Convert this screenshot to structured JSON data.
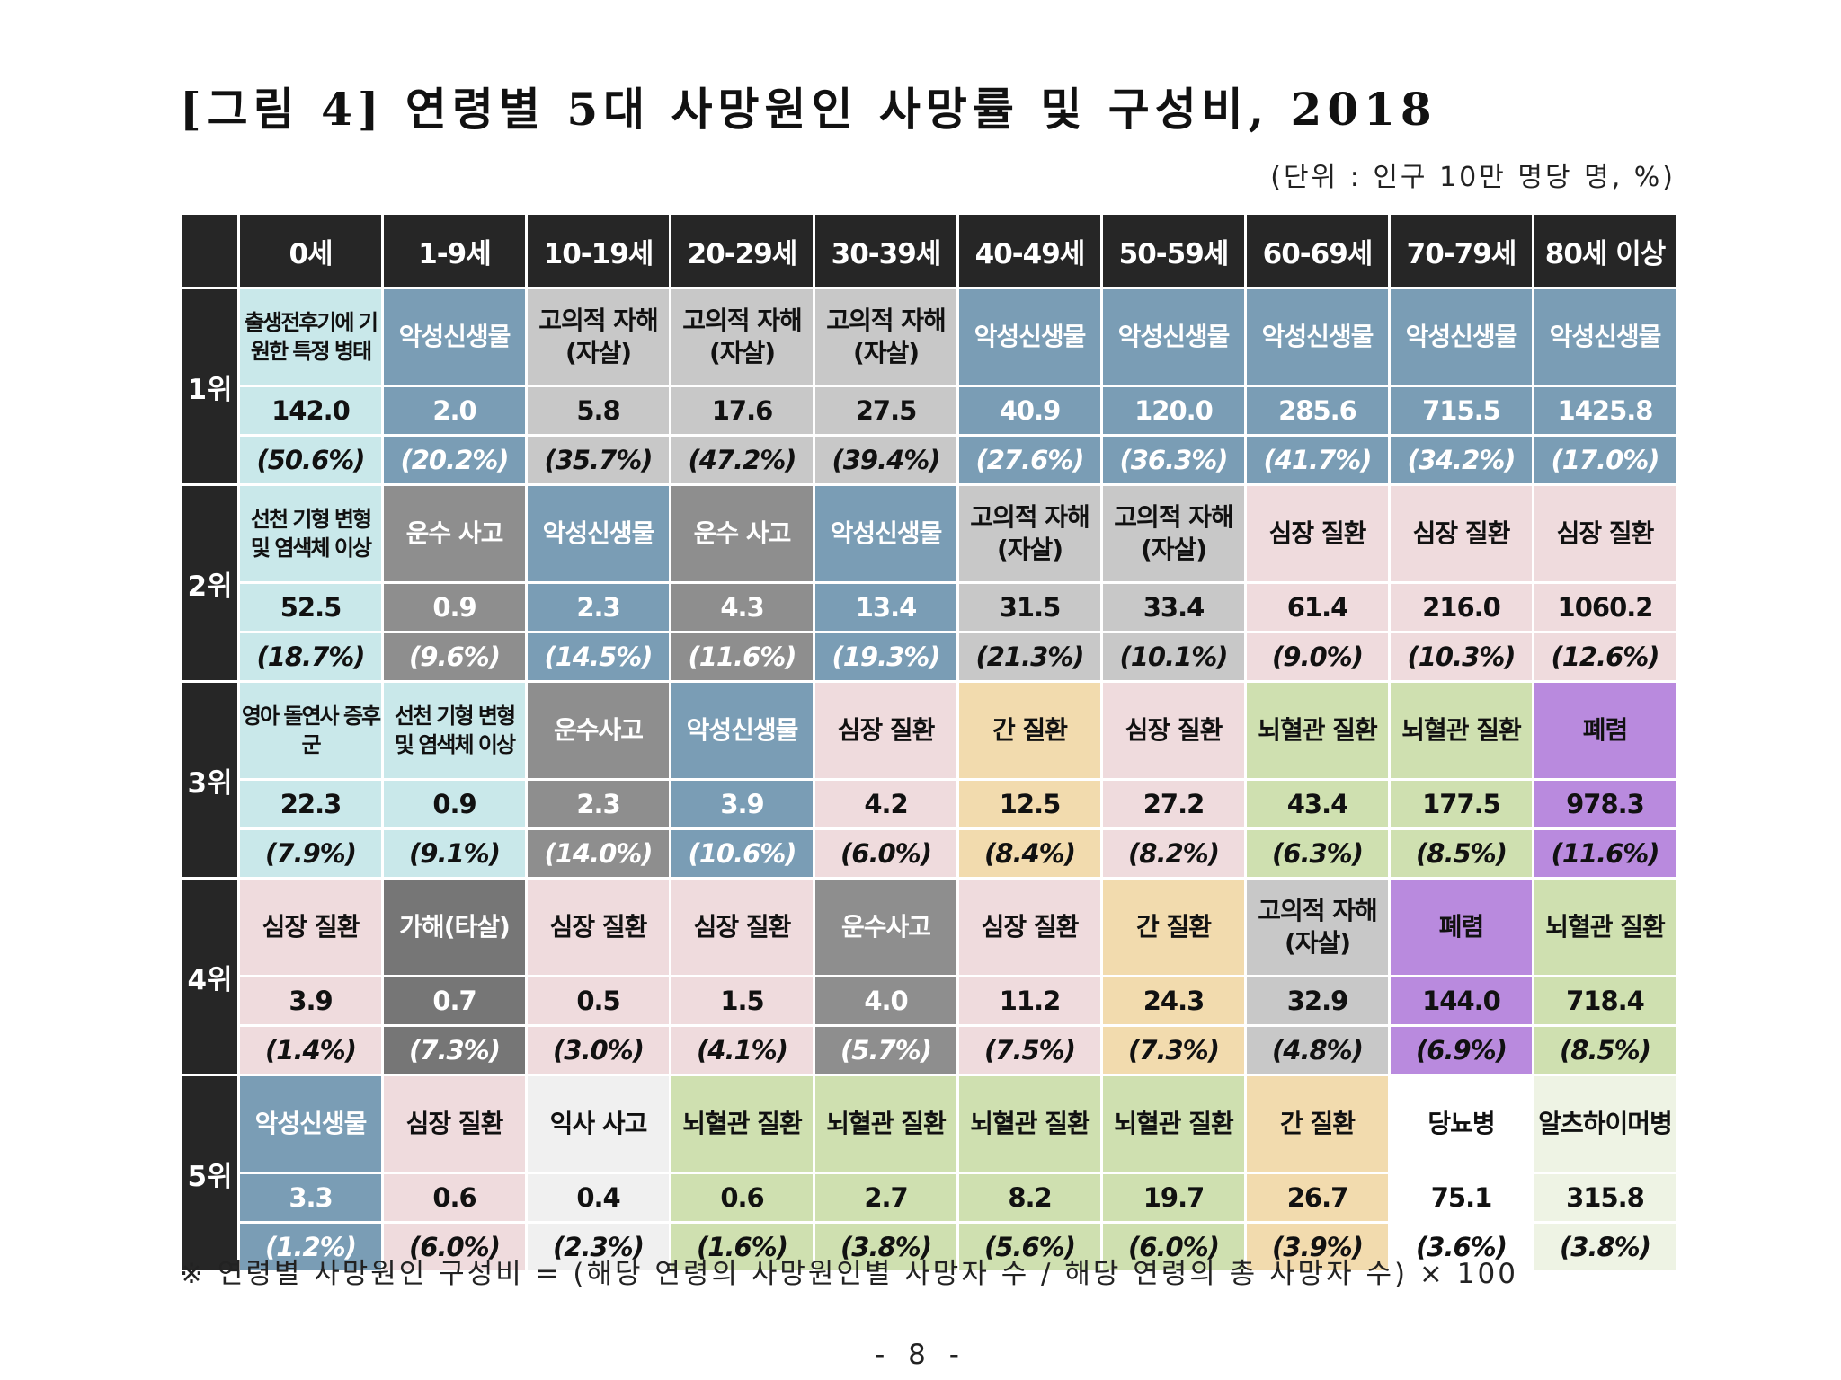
{
  "title": "[그림 4] 연령별 5대 사망원인 사망률 및 구성비, 2018",
  "unit": "(단위 : 인구 10만 명당 명, %)",
  "colors": {
    "header_bg": "#262626",
    "malignant_neoplasm": "#7a9db5",
    "intentional_self_harm": "#c8c8c8",
    "transport_accident": "#8e8e8e",
    "assault": "#767676",
    "heart_disease": "#efdbdd",
    "liver_disease": "#f2dbae",
    "cerebrovascular": "#cfe0b0",
    "pneumonia": "#b98ade",
    "perinatal_congenital": "#c9e8ea",
    "drowning": "#f0f0f0",
    "diabetes": "#ffffff",
    "alzheimer": "#eef3e4"
  },
  "table": {
    "corner": "",
    "age_groups": [
      "0세",
      "1-9세",
      "10-19세",
      "20-29세",
      "30-39세",
      "40-49세",
      "50-59세",
      "60-69세",
      "70-79세",
      "80세 이상"
    ],
    "rows": [
      {
        "rank": "1위",
        "cells": [
          {
            "cause": "출생전후기에 기원한 특정 병태",
            "rate": "142.0",
            "pct": "(50.6%)",
            "color": "#c9e8ea",
            "text": "dark",
            "small": true
          },
          {
            "cause": "악성신생물",
            "rate": "2.0",
            "pct": "(20.2%)",
            "color": "#7a9db5",
            "text": "light"
          },
          {
            "cause": "고의적 자해(자살)",
            "rate": "5.8",
            "pct": "(35.7%)",
            "color": "#c8c8c8",
            "text": "dark"
          },
          {
            "cause": "고의적 자해(자살)",
            "rate": "17.6",
            "pct": "(47.2%)",
            "color": "#c8c8c8",
            "text": "dark"
          },
          {
            "cause": "고의적 자해(자살)",
            "rate": "27.5",
            "pct": "(39.4%)",
            "color": "#c8c8c8",
            "text": "dark"
          },
          {
            "cause": "악성신생물",
            "rate": "40.9",
            "pct": "(27.6%)",
            "color": "#7a9db5",
            "text": "light"
          },
          {
            "cause": "악성신생물",
            "rate": "120.0",
            "pct": "(36.3%)",
            "color": "#7a9db5",
            "text": "light"
          },
          {
            "cause": "악성신생물",
            "rate": "285.6",
            "pct": "(41.7%)",
            "color": "#7a9db5",
            "text": "light"
          },
          {
            "cause": "악성신생물",
            "rate": "715.5",
            "pct": "(34.2%)",
            "color": "#7a9db5",
            "text": "light"
          },
          {
            "cause": "악성신생물",
            "rate": "1425.8",
            "pct": "(17.0%)",
            "color": "#7a9db5",
            "text": "light"
          }
        ]
      },
      {
        "rank": "2위",
        "cells": [
          {
            "cause": "선천 기형 변형 및 염색체 이상",
            "rate": "52.5",
            "pct": "(18.7%)",
            "color": "#c9e8ea",
            "text": "dark",
            "small": true
          },
          {
            "cause": "운수 사고",
            "rate": "0.9",
            "pct": "(9.6%)",
            "color": "#8e8e8e",
            "text": "light"
          },
          {
            "cause": "악성신생물",
            "rate": "2.3",
            "pct": "(14.5%)",
            "color": "#7a9db5",
            "text": "light"
          },
          {
            "cause": "운수 사고",
            "rate": "4.3",
            "pct": "(11.6%)",
            "color": "#8e8e8e",
            "text": "light"
          },
          {
            "cause": "악성신생물",
            "rate": "13.4",
            "pct": "(19.3%)",
            "color": "#7a9db5",
            "text": "light"
          },
          {
            "cause": "고의적 자해(자살)",
            "rate": "31.5",
            "pct": "(21.3%)",
            "color": "#c8c8c8",
            "text": "dark"
          },
          {
            "cause": "고의적 자해(자살)",
            "rate": "33.4",
            "pct": "(10.1%)",
            "color": "#c8c8c8",
            "text": "dark"
          },
          {
            "cause": "심장 질환",
            "rate": "61.4",
            "pct": "(9.0%)",
            "color": "#efdbdd",
            "text": "dark"
          },
          {
            "cause": "심장 질환",
            "rate": "216.0",
            "pct": "(10.3%)",
            "color": "#efdbdd",
            "text": "dark"
          },
          {
            "cause": "심장 질환",
            "rate": "1060.2",
            "pct": "(12.6%)",
            "color": "#efdbdd",
            "text": "dark"
          }
        ]
      },
      {
        "rank": "3위",
        "cells": [
          {
            "cause": "영아 돌연사 증후군",
            "rate": "22.3",
            "pct": "(7.9%)",
            "color": "#c9e8ea",
            "text": "dark",
            "small": true
          },
          {
            "cause": "선천 기형 변형 및 염색체 이상",
            "rate": "0.9",
            "pct": "(9.1%)",
            "color": "#c9e8ea",
            "text": "dark",
            "small": true
          },
          {
            "cause": "운수사고",
            "rate": "2.3",
            "pct": "(14.0%)",
            "color": "#8e8e8e",
            "text": "light"
          },
          {
            "cause": "악성신생물",
            "rate": "3.9",
            "pct": "(10.6%)",
            "color": "#7a9db5",
            "text": "light"
          },
          {
            "cause": "심장 질환",
            "rate": "4.2",
            "pct": "(6.0%)",
            "color": "#efdbdd",
            "text": "dark"
          },
          {
            "cause": "간 질환",
            "rate": "12.5",
            "pct": "(8.4%)",
            "color": "#f2dbae",
            "text": "dark"
          },
          {
            "cause": "심장 질환",
            "rate": "27.2",
            "pct": "(8.2%)",
            "color": "#efdbdd",
            "text": "dark"
          },
          {
            "cause": "뇌혈관 질환",
            "rate": "43.4",
            "pct": "(6.3%)",
            "color": "#cfe0b0",
            "text": "dark"
          },
          {
            "cause": "뇌혈관 질환",
            "rate": "177.5",
            "pct": "(8.5%)",
            "color": "#cfe0b0",
            "text": "dark"
          },
          {
            "cause": "폐렴",
            "rate": "978.3",
            "pct": "(11.6%)",
            "color": "#b98ade",
            "text": "dark"
          }
        ]
      },
      {
        "rank": "4위",
        "cells": [
          {
            "cause": "심장 질환",
            "rate": "3.9",
            "pct": "(1.4%)",
            "color": "#efdbdd",
            "text": "dark"
          },
          {
            "cause": "가해(타살)",
            "rate": "0.7",
            "pct": "(7.3%)",
            "color": "#767676",
            "text": "light"
          },
          {
            "cause": "심장 질환",
            "rate": "0.5",
            "pct": "(3.0%)",
            "color": "#efdbdd",
            "text": "dark"
          },
          {
            "cause": "심장 질환",
            "rate": "1.5",
            "pct": "(4.1%)",
            "color": "#efdbdd",
            "text": "dark"
          },
          {
            "cause": "운수사고",
            "rate": "4.0",
            "pct": "(5.7%)",
            "color": "#8e8e8e",
            "text": "light"
          },
          {
            "cause": "심장 질환",
            "rate": "11.2",
            "pct": "(7.5%)",
            "color": "#efdbdd",
            "text": "dark"
          },
          {
            "cause": "간 질환",
            "rate": "24.3",
            "pct": "(7.3%)",
            "color": "#f2dbae",
            "text": "dark"
          },
          {
            "cause": "고의적 자해(자살)",
            "rate": "32.9",
            "pct": "(4.8%)",
            "color": "#c8c8c8",
            "text": "dark"
          },
          {
            "cause": "폐렴",
            "rate": "144.0",
            "pct": "(6.9%)",
            "color": "#b98ade",
            "text": "dark"
          },
          {
            "cause": "뇌혈관 질환",
            "rate": "718.4",
            "pct": "(8.5%)",
            "color": "#cfe0b0",
            "text": "dark"
          }
        ]
      },
      {
        "rank": "5위",
        "cells": [
          {
            "cause": "악성신생물",
            "rate": "3.3",
            "pct": "(1.2%)",
            "color": "#7a9db5",
            "text": "light"
          },
          {
            "cause": "심장 질환",
            "rate": "0.6",
            "pct": "(6.0%)",
            "color": "#efdbdd",
            "text": "dark"
          },
          {
            "cause": "익사 사고",
            "rate": "0.4",
            "pct": "(2.3%)",
            "color": "#f0f0f0",
            "text": "dark"
          },
          {
            "cause": "뇌혈관 질환",
            "rate": "0.6",
            "pct": "(1.6%)",
            "color": "#cfe0b0",
            "text": "dark"
          },
          {
            "cause": "뇌혈관 질환",
            "rate": "2.7",
            "pct": "(3.8%)",
            "color": "#cfe0b0",
            "text": "dark"
          },
          {
            "cause": "뇌혈관 질환",
            "rate": "8.2",
            "pct": "(5.6%)",
            "color": "#cfe0b0",
            "text": "dark"
          },
          {
            "cause": "뇌혈관 질환",
            "rate": "19.7",
            "pct": "(6.0%)",
            "color": "#cfe0b0",
            "text": "dark"
          },
          {
            "cause": "간 질환",
            "rate": "26.7",
            "pct": "(3.9%)",
            "color": "#f2dbae",
            "text": "dark"
          },
          {
            "cause": "당뇨병",
            "rate": "75.1",
            "pct": "(3.6%)",
            "color": "#ffffff",
            "text": "dark"
          },
          {
            "cause": "알츠하이머병",
            "rate": "315.8",
            "pct": "(3.8%)",
            "color": "#eef3e4",
            "text": "dark"
          }
        ]
      }
    ]
  },
  "note": "※ 연령별 사망원인 구성비 = (해당 연령의 사망원인별 사망자 수 / 해당 연령의 총 사망자 수) × 100",
  "page_number": "- 8 -"
}
